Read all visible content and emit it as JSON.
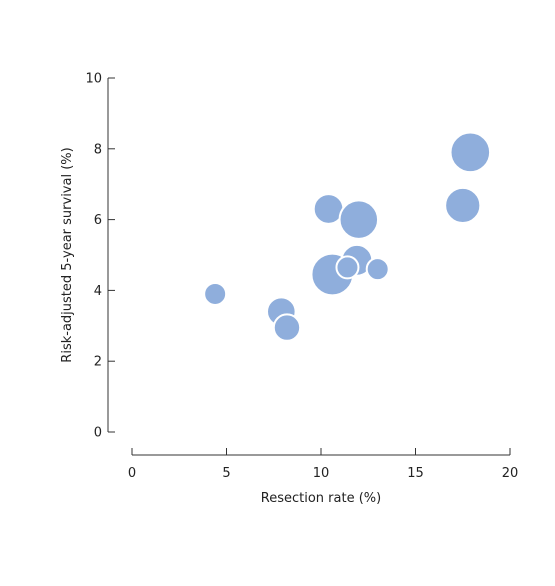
{
  "chart_data": {
    "type": "scatter",
    "variant": "bubble",
    "title": "",
    "xlabel": "Resection rate (%)",
    "ylabel": "Risk-adjusted 5-year survival (%)",
    "xlim": [
      0,
      20
    ],
    "ylim": [
      0,
      10
    ],
    "x_ticks": [
      0,
      5,
      10,
      15,
      20
    ],
    "y_ticks": [
      0,
      2,
      4,
      6,
      8,
      10
    ],
    "x_tick_labels": [
      "0",
      "5",
      "10",
      "15",
      "20"
    ],
    "y_tick_labels": [
      "0",
      "2",
      "4",
      "6",
      "8",
      "10"
    ],
    "grid": false,
    "legend": "none",
    "bubble_color": "#8FAEDC",
    "bubble_outline": "#ffffff",
    "points": [
      {
        "x": 4.4,
        "y": 3.9,
        "relative_size": 1.0
      },
      {
        "x": 7.9,
        "y": 3.4,
        "relative_size": 1.3
      },
      {
        "x": 8.2,
        "y": 2.95,
        "relative_size": 1.2
      },
      {
        "x": 10.4,
        "y": 6.3,
        "relative_size": 1.35
      },
      {
        "x": 10.6,
        "y": 4.45,
        "relative_size": 1.9
      },
      {
        "x": 11.9,
        "y": 4.85,
        "relative_size": 1.4
      },
      {
        "x": 12.0,
        "y": 6.0,
        "relative_size": 1.75
      },
      {
        "x": 11.4,
        "y": 4.65,
        "relative_size": 1.0
      },
      {
        "x": 13.0,
        "y": 4.6,
        "relative_size": 1.0
      },
      {
        "x": 17.5,
        "y": 6.4,
        "relative_size": 1.6
      },
      {
        "x": 17.9,
        "y": 7.9,
        "relative_size": 1.8
      }
    ]
  }
}
